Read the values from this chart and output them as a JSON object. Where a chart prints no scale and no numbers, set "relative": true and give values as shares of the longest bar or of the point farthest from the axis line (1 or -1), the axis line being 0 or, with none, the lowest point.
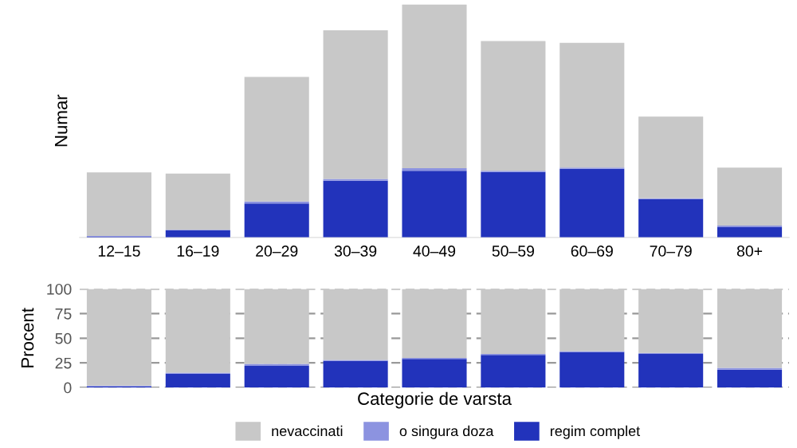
{
  "chart_data": [
    {
      "type": "bar",
      "ylabel": "Numar",
      "stacked": true,
      "relative": true,
      "tick_labels": "x",
      "grid": false,
      "categories": [
        "12–15",
        "16–19",
        "20–29",
        "30–39",
        "40–49",
        "50–59",
        "60–69",
        "70–79",
        "80+"
      ],
      "series": [
        {
          "color": "#2233bb",
          "values": [
            0.003,
            0.03,
            0.146,
            0.243,
            0.286,
            0.281,
            0.295,
            0.165,
            0.046
          ]
        },
        {
          "color": "#8c93e0",
          "values": [
            0.003,
            0.003,
            0.008,
            0.008,
            0.011,
            0.005,
            0.005,
            0.003,
            0.005
          ]
        },
        {
          "color": "#c8c8c8",
          "values": [
            0.273,
            0.241,
            0.535,
            0.638,
            0.703,
            0.557,
            0.535,
            0.351,
            0.249
          ]
        }
      ]
    },
    {
      "type": "bar",
      "ylabel": "Procent",
      "xlabel": "Categorie de varsta",
      "stacked": true,
      "tick_labels": "y",
      "grid": "y",
      "legend": "bottom",
      "ylim": [
        0,
        100
      ],
      "yticks": [
        0,
        25,
        50,
        75,
        100
      ],
      "categories": [
        null,
        null,
        null,
        null,
        null,
        null,
        null,
        null,
        null
      ],
      "series": [
        {
          "name": "regim complet",
          "color": "#2233bb",
          "values": [
            1,
            14,
            22,
            27,
            29,
            33,
            36,
            34,
            18
          ]
        },
        {
          "name": "o singura doza",
          "color": "#8c93e0",
          "values": [
            1,
            1,
            2,
            1,
            1,
            1,
            1,
            1,
            2
          ]
        },
        {
          "name": "nevaccinati",
          "color": "#c8c8c8",
          "values": [
            98,
            85,
            76,
            72,
            70,
            66,
            63,
            65,
            80
          ]
        }
      ]
    }
  ]
}
